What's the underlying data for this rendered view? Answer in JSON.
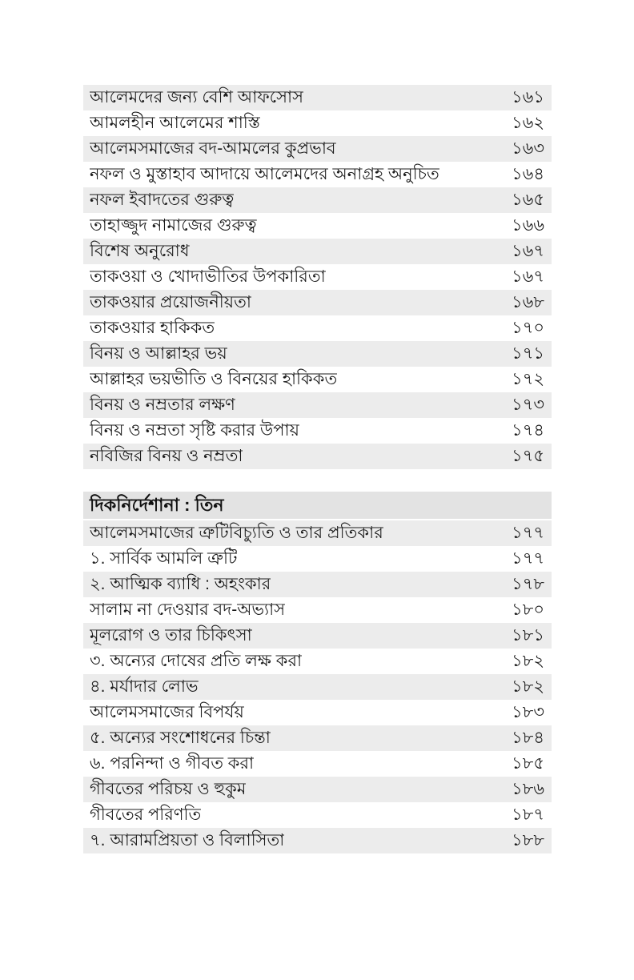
{
  "colors": {
    "page_bg": "#ffffff",
    "row_stripe": "#ececec",
    "header_bg": "#e3e3e3",
    "text": "#1c1c1c"
  },
  "toc": {
    "sections": [
      {
        "header": null,
        "rows": [
          {
            "title": "আলেমদের জন্য বেশি আফসোস",
            "page": "১৬১"
          },
          {
            "title": "আমলহীন আলেমের শাস্তি",
            "page": "১৬২"
          },
          {
            "title": "আলেমসমাজের বদ-আমলের কুপ্রভাব",
            "page": "১৬৩"
          },
          {
            "title": "নফল ও মুস্তাহাব আদায়ে আলেমদের অনাগ্রহ অনুচিত",
            "page": "১৬৪"
          },
          {
            "title": "নফল ইবাদতের গুরুত্ব",
            "page": "১৬৫"
          },
          {
            "title": "তাহাজ্জুদ নামাজের গুরুত্ব",
            "page": "১৬৬"
          },
          {
            "title": "বিশেষ অনুরোধ",
            "page": "১৬৭"
          },
          {
            "title": "তাকওয়া ও খোদাভীতির উপকারিতা",
            "page": "১৬৭"
          },
          {
            "title": "তাকওয়ার প্রয়োজনীয়তা",
            "page": "১৬৮"
          },
          {
            "title": "তাকওয়ার হাকিকত",
            "page": "১৭০"
          },
          {
            "title": "বিনয় ও আল্লাহর ভয়",
            "page": "১৭১"
          },
          {
            "title": "আল্লাহর ভয়ভীতি ও বিনয়ের হাকিকত",
            "page": "১৭২"
          },
          {
            "title": "বিনয় ও নম্রতার লক্ষণ",
            "page": "১৭৩"
          },
          {
            "title": "বিনয় ও নম্রতা সৃষ্টি করার উপায়",
            "page": "১৭৪"
          },
          {
            "title": "নবিজির বিনয় ও নম্রতা",
            "page": "১৭৫"
          }
        ]
      },
      {
        "header": "দিকনির্দেশানা : তিন",
        "rows": [
          {
            "title": "আলেমসমাজের ত্রুটিবিচ্যুতি ও তার প্রতিকার",
            "page": "১৭৭"
          },
          {
            "title": "১. সার্বিক আমলি ত্রুটি",
            "page": "১৭৭"
          },
          {
            "title": "২. আত্মিক ব্যাধি : অহংকার",
            "page": "১৭৮"
          },
          {
            "title": "সালাম না দেওয়ার বদ-অভ্যাস",
            "page": "১৮০"
          },
          {
            "title": "মূলরোগ ও তার চিকিৎসা",
            "page": "১৮১"
          },
          {
            "title": "৩. অন্যের দোষের প্রতি লক্ষ করা",
            "page": "১৮২"
          },
          {
            "title": "৪. মর্যাদার লোভ",
            "page": "১৮২"
          },
          {
            "title": "আলেমসমাজের বিপর্যয়",
            "page": "১৮৩"
          },
          {
            "title": "৫. অন্যের সংশোধনের চিন্তা",
            "page": "১৮৪"
          },
          {
            "title": "৬. পরনিন্দা ও গীবত করা",
            "page": "১৮৫"
          },
          {
            "title": "গীবতের পরিচয় ও হুকুম",
            "page": "১৮৬"
          },
          {
            "title": "গীবতের পরিণতি",
            "page": "১৮৭"
          },
          {
            "title": "৭. আরামপ্রিয়তা ও বিলাসিতা",
            "page": "১৮৮"
          }
        ]
      }
    ]
  }
}
